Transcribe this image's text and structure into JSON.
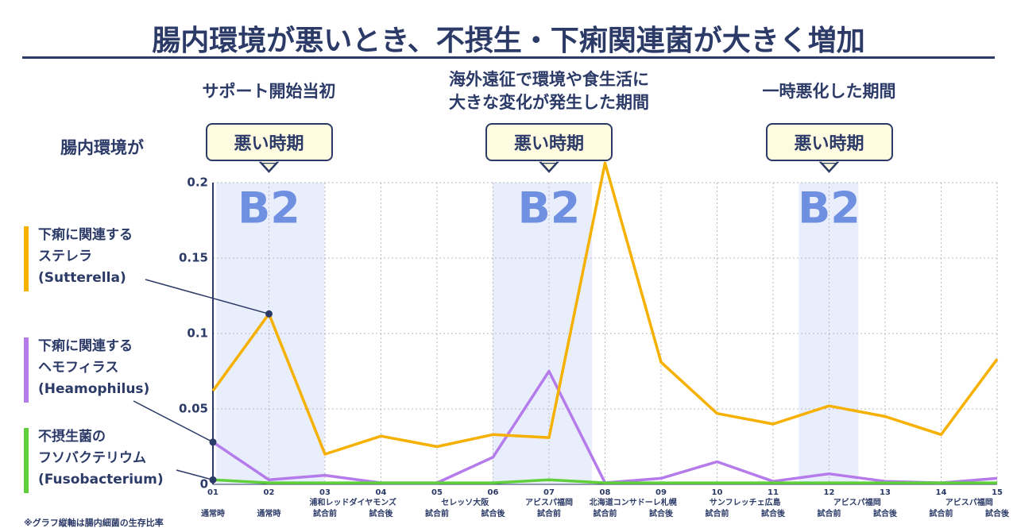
{
  "chart_data": {
    "type": "line",
    "title": "腸内環境が悪いとき、不摂生・下痢関連菌が大きく増加",
    "row_label": "腸内環境が",
    "footnote": "※グラフ縦軸は腸内細菌の生存比率",
    "categories": [
      "01",
      "02",
      "03",
      "04",
      "05",
      "06",
      "07",
      "08",
      "09",
      "10",
      "11",
      "12",
      "13",
      "14",
      "15"
    ],
    "sub_labels": [
      "通常時",
      "通常時",
      "試合前",
      "試合後",
      "試合前",
      "試合後",
      "試合前",
      "試合前",
      "試合後",
      "試合前",
      "試合後",
      "試合前",
      "試合後",
      "試合前",
      "試合後"
    ],
    "matches": [
      null,
      null,
      "浦和レッドダイヤモンズ",
      null,
      "セレッソ大阪",
      null,
      "アビスパ福岡",
      "北海道コンサドーレ札幌",
      null,
      "サンフレッチェ広島",
      null,
      "アビスパ福岡",
      null,
      "アビスパ福岡",
      null
    ],
    "periods": [
      {
        "at": "02",
        "callout": "悪い時期",
        "tag": "B2",
        "caption": "サポート開始当初"
      },
      {
        "at": "07",
        "callout": "悪い時期",
        "tag": "B2",
        "caption": "海外遠征で環境や食生活に\n大きな変化が発生した期間"
      },
      {
        "at": "12",
        "callout": "悪い時期",
        "tag": "B2",
        "caption": "一時悪化した期間"
      }
    ],
    "series": [
      {
        "name": "下痢に関連する\nステレラ\n(Sutterella)",
        "color": "#f5b000",
        "values": [
          0.062,
          0.113,
          0.02,
          0.032,
          0.025,
          0.033,
          0.031,
          0.213,
          0.081,
          0.047,
          0.04,
          0.052,
          0.045,
          0.033,
          0.083
        ]
      },
      {
        "name": "下痢に関連する\nヘモフィラス\n(Heamophilus)",
        "color": "#b57bea",
        "values": [
          0.028,
          0.003,
          0.006,
          0.001,
          0.001,
          0.018,
          0.075,
          0.001,
          0.004,
          0.015,
          0.002,
          0.007,
          0.002,
          0.001,
          0.004
        ]
      },
      {
        "name": "不摂生菌の\nフソバクテリウム\n(Fusobacterium)",
        "color": "#5fcf3a",
        "values": [
          0.003,
          0.001,
          0.001,
          0.001,
          0.001,
          0.001,
          0.003,
          0.001,
          0.001,
          0.001,
          0.001,
          0.001,
          0.001,
          0.001,
          0.001
        ]
      }
    ],
    "ylim": [
      0,
      0.2
    ],
    "yticks": [
      0,
      0.05,
      0.1,
      0.15,
      0.2
    ],
    "grid": true
  }
}
